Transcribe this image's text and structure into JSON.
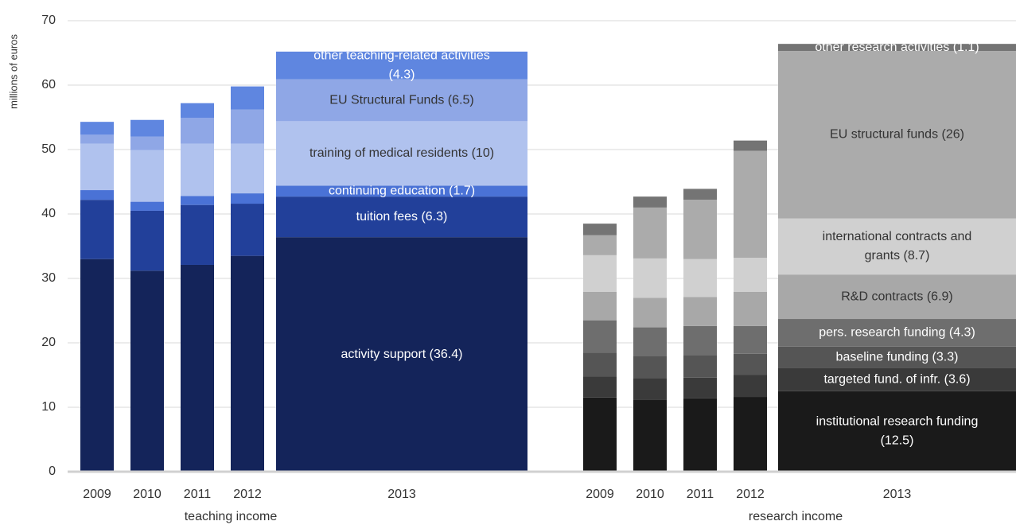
{
  "chart_data": {
    "type": "stacked-bar",
    "ylabel": "millions of euros",
    "ylim": [
      0,
      70
    ],
    "yticks": [
      0,
      10,
      20,
      30,
      40,
      50,
      60,
      70
    ],
    "grid": true,
    "groups": [
      {
        "label": "teaching income",
        "categories": [
          "2009",
          "2010",
          "2011",
          "2012",
          "2013"
        ],
        "series": [
          {
            "color": "#14245a",
            "values": [
              33.0,
              31.2,
              32.1,
              33.5,
              36.4
            ],
            "value_labels": [
              null,
              null,
              null,
              null,
              "activity support (36.4)"
            ]
          },
          {
            "color": "#22409a",
            "values": [
              9.2,
              9.3,
              9.3,
              8.1,
              6.3
            ],
            "value_labels": [
              null,
              null,
              null,
              null,
              "tuition fees (6.3)"
            ]
          },
          {
            "color": "#4a72d6",
            "values": [
              1.5,
              1.4,
              1.4,
              1.6,
              1.7
            ],
            "value_labels": [
              null,
              null,
              null,
              null,
              "continuing education (1.7)"
            ]
          },
          {
            "color": "#b0c2ee",
            "values": [
              7.2,
              8.0,
              8.1,
              7.7,
              10
            ],
            "value_labels": [
              null,
              null,
              null,
              null,
              "training of medical residents (10)"
            ]
          },
          {
            "color": "#8fa7e6",
            "values": [
              1.4,
              2.1,
              4.0,
              5.3,
              6.5
            ],
            "value_labels": [
              null,
              null,
              null,
              null,
              "EU Structural Funds (6.5)"
            ]
          },
          {
            "color": "#5f86e0",
            "values": [
              2.0,
              2.6,
              2.3,
              3.6,
              4.3
            ],
            "value_labels": [
              null,
              null,
              null,
              null,
              "other teaching-related activities (4.3)"
            ]
          }
        ]
      },
      {
        "label": "research income",
        "categories": [
          "2009",
          "2010",
          "2011",
          "2012",
          "2013"
        ],
        "series": [
          {
            "color": "#1a1a1a",
            "values": [
              11.5,
              11.2,
              11.4,
              11.6,
              12.5
            ],
            "value_labels": [
              null,
              null,
              null,
              null,
              "institutional research funding (12.5)"
            ]
          },
          {
            "color": "#3a3a3a",
            "values": [
              3.3,
              3.3,
              3.2,
              3.4,
              3.6
            ],
            "value_labels": [
              null,
              null,
              null,
              null,
              "targeted fund. of infr. (3.6)"
            ]
          },
          {
            "color": "#555555",
            "values": [
              3.7,
              3.5,
              3.5,
              3.3,
              3.3
            ],
            "value_labels": [
              null,
              null,
              null,
              null,
              "baseline funding (3.3)"
            ]
          },
          {
            "color": "#6e6e6e",
            "values": [
              5.0,
              4.4,
              4.5,
              4.3,
              4.3
            ],
            "value_labels": [
              null,
              null,
              null,
              null,
              "pers. research funding (4.3)"
            ]
          },
          {
            "color": "#a8a8a8",
            "values": [
              4.4,
              4.6,
              4.5,
              5.3,
              6.9
            ],
            "value_labels": [
              null,
              null,
              null,
              null,
              "R&D contracts (6.9)"
            ]
          },
          {
            "color": "#d0d0d0",
            "values": [
              5.7,
              6.1,
              5.9,
              5.3,
              8.7
            ],
            "value_labels": [
              null,
              null,
              null,
              null,
              "international contracts and grants (8.7)"
            ]
          },
          {
            "color": "#ababab",
            "values": [
              3.1,
              7.9,
              9.2,
              16.6,
              26
            ],
            "value_labels": [
              null,
              null,
              null,
              null,
              "EU structural funds (26)"
            ]
          },
          {
            "color": "#747474",
            "values": [
              1.8,
              1.7,
              1.7,
              1.6,
              1.1
            ],
            "value_labels": [
              null,
              null,
              null,
              null,
              "other research activities (1.1)"
            ]
          }
        ]
      }
    ]
  }
}
